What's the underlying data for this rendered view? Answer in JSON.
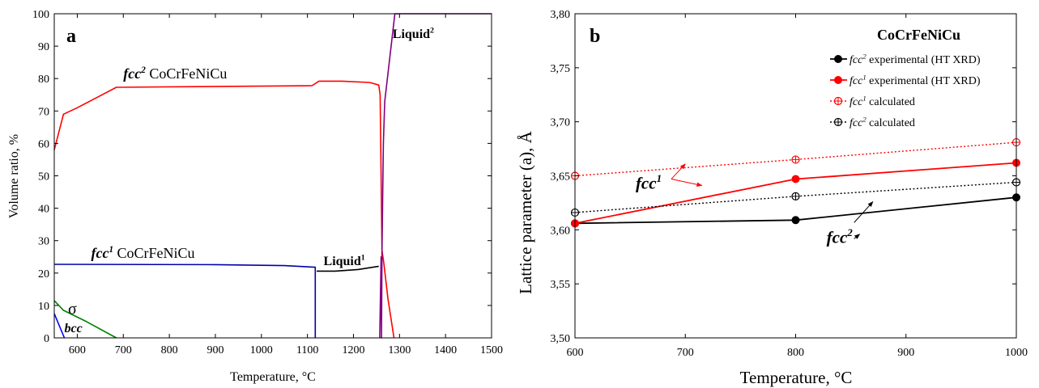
{
  "chart_data": [
    {
      "type": "line",
      "panel_label": "a",
      "xlabel": "Temperature, °C",
      "ylabel": "Volume ratio, %",
      "xlim": [
        550,
        1500
      ],
      "ylim": [
        0,
        100
      ],
      "xticks": [
        600,
        700,
        800,
        900,
        1000,
        1100,
        1200,
        1300,
        1400,
        1500
      ],
      "yticks": [
        0,
        10,
        20,
        30,
        40,
        50,
        60,
        70,
        80,
        90,
        100
      ],
      "grid": false,
      "series": [
        {
          "color": "#ff0000",
          "x": [
            550,
            570,
            600,
            685,
            1110,
            1125,
            1175,
            1235,
            1255,
            1258,
            1262,
            1266,
            1275,
            1288
          ],
          "y": [
            58,
            69,
            71,
            77.3,
            77.8,
            79.2,
            79.2,
            78.8,
            78,
            75,
            27,
            23,
            12,
            0
          ]
        },
        {
          "color": "#0000aa",
          "x": [
            550,
            900,
            1050,
            1117,
            1117
          ],
          "y": [
            22.7,
            22.6,
            22.3,
            21.8,
            0
          ]
        },
        {
          "color": "#000000",
          "x": [
            1120,
            1160,
            1210,
            1255
          ],
          "y": [
            20.6,
            20.6,
            21.1,
            22.1
          ]
        },
        {
          "color": "#800080",
          "x": [
            1257,
            1260,
            1261,
            1262,
            1265,
            1268,
            1290,
            1500
          ],
          "y": [
            0,
            25,
            0,
            27,
            60,
            73,
            100,
            100
          ]
        },
        {
          "color": "#008000",
          "x": [
            550,
            570,
            620,
            685
          ],
          "y": [
            11.5,
            8.5,
            5,
            0
          ]
        },
        {
          "color": "#0000ff",
          "x": [
            550,
            572
          ],
          "y": [
            7.5,
            0
          ]
        }
      ],
      "annotations": [
        {
          "text": "fcc",
          "sup": "2",
          "suffix": "CoCrFeNiCu",
          "color": "#ff0000",
          "x": 700,
          "y": 80
        },
        {
          "text": "fcc",
          "sup": "1",
          "suffix": "CoCrFeNiCu",
          "color": "#0000aa",
          "x": 630,
          "y": 24.7
        },
        {
          "text": "Liquid",
          "sup": "1",
          "suffix": "",
          "color": "#000000",
          "x": 1135,
          "y": 22.5
        },
        {
          "text": "Liquid",
          "sup": "2",
          "suffix": "",
          "color": "#000000",
          "x": 1285,
          "y": 92.5
        },
        {
          "text": "σ",
          "sup": "",
          "suffix": "",
          "color": "#000000",
          "x": 580,
          "y": 7.3
        },
        {
          "text": "bcc",
          "sup": "",
          "suffix": "",
          "color": "#000000",
          "x": 572,
          "y": 1.8
        }
      ]
    },
    {
      "type": "line",
      "panel_label": "b",
      "title": "CoCrFeNiCu",
      "xlabel": "Temperature, °C",
      "ylabel": "Lattice parameter (a),  Å",
      "xlim": [
        600,
        1000
      ],
      "ylim": [
        3.5,
        3.8
      ],
      "xticks": [
        600,
        700,
        800,
        900,
        1000
      ],
      "yticks": [
        "3,50",
        "3,55",
        "3,60",
        "3,65",
        "3,70",
        "3,75",
        "3,80"
      ],
      "grid": false,
      "legend": "top-right",
      "series": [
        {
          "name": "fcc",
          "sup": "2",
          "name_suffix": " experimental (HT XRD)",
          "color": "#000000",
          "style": "solid",
          "marker": "filled",
          "x": [
            600,
            800,
            1000
          ],
          "y": [
            3.606,
            3.609,
            3.63
          ]
        },
        {
          "name": "fcc",
          "sup": "1",
          "name_suffix": " experimental (HT XRD)",
          "color": "#ff0000",
          "style": "solid",
          "marker": "filled",
          "x": [
            600,
            800,
            1000
          ],
          "y": [
            3.606,
            3.647,
            3.662
          ]
        },
        {
          "name": "fcc",
          "sup": "1",
          "name_suffix": " calculated",
          "color": "#ff0000",
          "style": "dotted",
          "marker": "crossed-open",
          "x": [
            600,
            800,
            1000
          ],
          "y": [
            3.65,
            3.665,
            3.681
          ]
        },
        {
          "name": "fcc",
          "sup": "2",
          "name_suffix": " calculated",
          "color": "#000000",
          "style": "dotted",
          "marker": "crossed-open",
          "x": [
            600,
            800,
            1000
          ],
          "y": [
            3.616,
            3.631,
            3.644
          ]
        }
      ],
      "annotations": [
        {
          "text": "fcc",
          "sup": "1",
          "color": "#ff0000",
          "x": 655,
          "y": 3.638
        },
        {
          "text": "fcc",
          "sup": "2",
          "color": "#000000",
          "x": 828,
          "y": 3.588
        }
      ]
    }
  ]
}
